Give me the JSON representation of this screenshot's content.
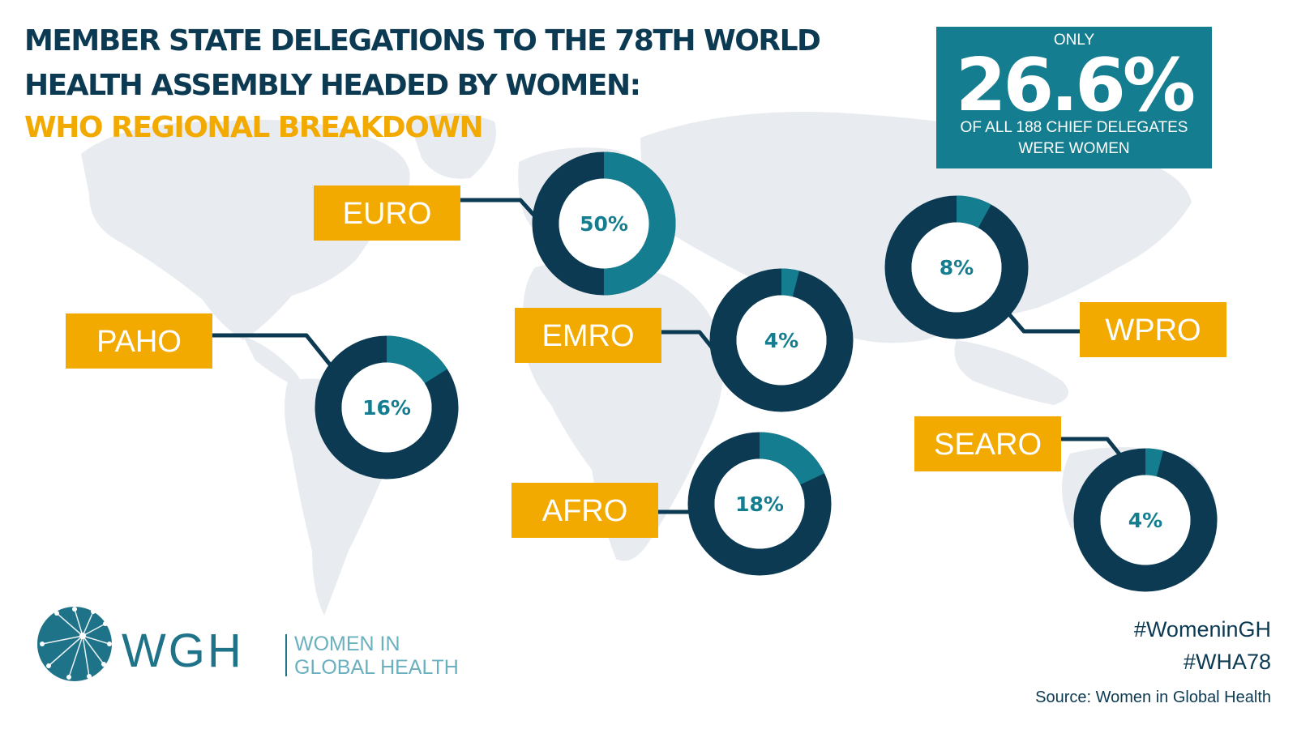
{
  "title_line1": "MEMBER STATE DELEGATIONS TO THE 78TH WORLD",
  "title_line2": "HEALTH ASSEMBLY HEADED BY WOMEN:",
  "subtitle": "WHO REGIONAL BREAKDOWN",
  "summary": {
    "prefix": "ONLY",
    "value": "26.6%",
    "suffix_line1": "OF ALL 188 CHIEF DELEGATES",
    "suffix_line2": "WERE WOMEN"
  },
  "hashtags": [
    "#WomeninGH",
    "#WHA78"
  ],
  "source": "Source: Women in Global Health",
  "logo": {
    "abbr": "WGH",
    "line1": "WOMEN IN",
    "line2": "GLOBAL HEALTH"
  },
  "colors": {
    "dark": "#0b3a52",
    "teal": "#147d8f",
    "orange": "#f2a900",
    "map": "#e8ecf0"
  },
  "chart_data": {
    "type": "pie",
    "variant": "donut",
    "categories": [
      "EURO",
      "PAHO",
      "EMRO",
      "AFRO",
      "WPRO",
      "SEARO"
    ],
    "values": [
      50,
      16,
      4,
      18,
      8,
      4
    ],
    "value_labels": [
      "50%",
      "16%",
      "4%",
      "18%",
      "8%",
      "4%"
    ],
    "unit": "%"
  }
}
